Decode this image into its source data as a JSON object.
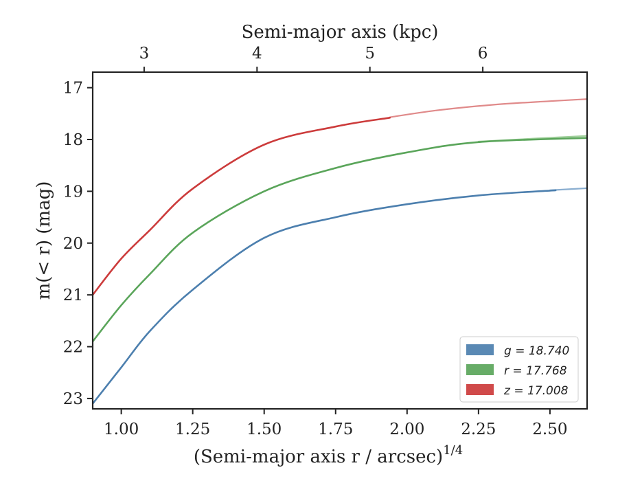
{
  "chart_data": {
    "type": "line",
    "xlabel": "(Semi-major axis r / arcsec)",
    "xlabel_exponent": "1/4",
    "ylabel": "m(< r) (mag)",
    "top_xlabel": "Semi-major axis (kpc)",
    "xlim": [
      0.9,
      2.63
    ],
    "ylim": [
      23.2,
      16.7
    ],
    "y_inverted": true,
    "x_ticks": [
      "1.00",
      "1.25",
      "1.50",
      "1.75",
      "2.00",
      "2.25",
      "2.50"
    ],
    "y_ticks": [
      "17",
      "18",
      "19",
      "20",
      "21",
      "22",
      "23"
    ],
    "top_ticks": [
      {
        "label": "3",
        "x": 1.08
      },
      {
        "label": "4",
        "x": 1.475
      },
      {
        "label": "5",
        "x": 1.87
      },
      {
        "label": "6",
        "x": 2.265
      }
    ],
    "legend_position": "bottom-right",
    "series": [
      {
        "name": "g = 18.740",
        "color": "#4c7fae",
        "x": [
          0.9,
          1.0,
          1.1,
          1.25,
          1.5,
          1.75,
          2.0,
          2.25,
          2.52
        ],
        "y": [
          23.1,
          22.4,
          21.7,
          20.9,
          19.9,
          19.5,
          19.25,
          19.08,
          18.98
        ]
      },
      {
        "name": "r = 17.768",
        "color": "#5aa55a",
        "x": [
          0.9,
          1.0,
          1.1,
          1.25,
          1.5,
          1.75,
          2.0,
          2.25,
          2.63
        ],
        "y": [
          21.9,
          21.2,
          20.6,
          19.8,
          19.0,
          18.55,
          18.25,
          18.05,
          17.97
        ]
      },
      {
        "name": "z = 17.008",
        "color": "#cc3b3b",
        "x": [
          0.9,
          1.0,
          1.1,
          1.25,
          1.5,
          1.75,
          1.94
        ],
        "y": [
          21.0,
          20.3,
          19.75,
          18.95,
          18.1,
          17.75,
          17.58
        ]
      }
    ],
    "faint_series": [
      {
        "color": "#8aaed0",
        "x": [
          2.5,
          2.63
        ],
        "y": [
          18.98,
          18.94
        ]
      },
      {
        "color": "#9fcf9a",
        "x": [
          2.25,
          2.45,
          2.63
        ],
        "y": [
          18.04,
          17.98,
          17.93
        ]
      },
      {
        "color": "#e08a8a",
        "x": [
          1.94,
          2.1,
          2.3,
          2.5,
          2.63
        ],
        "y": [
          17.57,
          17.44,
          17.33,
          17.26,
          17.22
        ]
      }
    ]
  }
}
